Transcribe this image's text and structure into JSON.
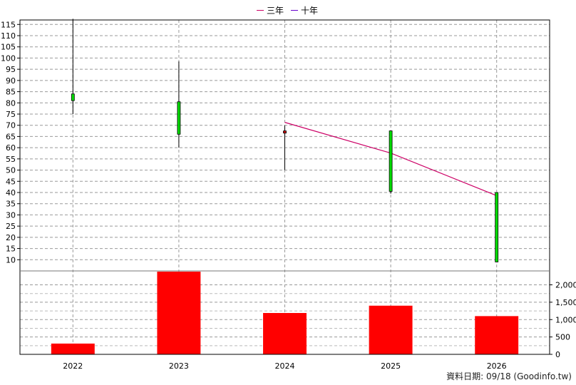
{
  "legend": [
    {
      "label": "三年",
      "color": "#cc0066"
    },
    {
      "label": "十年",
      "color": "#6600cc"
    }
  ],
  "footer": "資料日期: 09/18  (Goodinfo.tw)",
  "chart_data": {
    "type": "candlestick+bar",
    "categories": [
      "2022",
      "2023",
      "2024",
      "2025",
      "2026"
    ],
    "price_axis": {
      "ylim": [
        5,
        117
      ],
      "ticks": [
        10,
        15,
        20,
        25,
        30,
        35,
        40,
        45,
        50,
        55,
        60,
        65,
        70,
        75,
        80,
        85,
        90,
        95,
        100,
        105,
        110,
        115
      ]
    },
    "candles": [
      {
        "x": "2022",
        "open": 81,
        "close": 84,
        "high": 117.5,
        "low": 75,
        "color": "#00dd00"
      },
      {
        "x": "2023",
        "open": 80.5,
        "close": 66,
        "high": 98.5,
        "low": 60,
        "color": "#00dd00"
      },
      {
        "x": "2024",
        "open": 66.5,
        "close": 67.5,
        "high": 70,
        "low": 50,
        "color": "#cc0000"
      },
      {
        "x": "2025",
        "open": 67.5,
        "close": 40.5,
        "high": 67.5,
        "low": 39.5,
        "color": "#00dd00"
      },
      {
        "x": "2026",
        "open": 40,
        "close": 9,
        "high": 40,
        "low": 9,
        "color": "#00dd00"
      }
    ],
    "series": [
      {
        "name": "三年",
        "color": "#cc0066",
        "points": [
          [
            "2024",
            71.3
          ],
          [
            "2025",
            57.6
          ],
          [
            "2026",
            38.6
          ]
        ]
      },
      {
        "name": "十年",
        "color": "#6600cc",
        "points": []
      }
    ],
    "volume_axis": {
      "ylim": [
        0,
        2400
      ],
      "ticks": [
        0,
        500,
        1000,
        1500,
        2000
      ],
      "tick_labels": [
        "0",
        "500",
        "1,000",
        "1,500",
        "2,000"
      ]
    },
    "volume": {
      "values": [
        310,
        2380,
        1190,
        1400,
        1100
      ],
      "color": "#ff0000"
    }
  }
}
